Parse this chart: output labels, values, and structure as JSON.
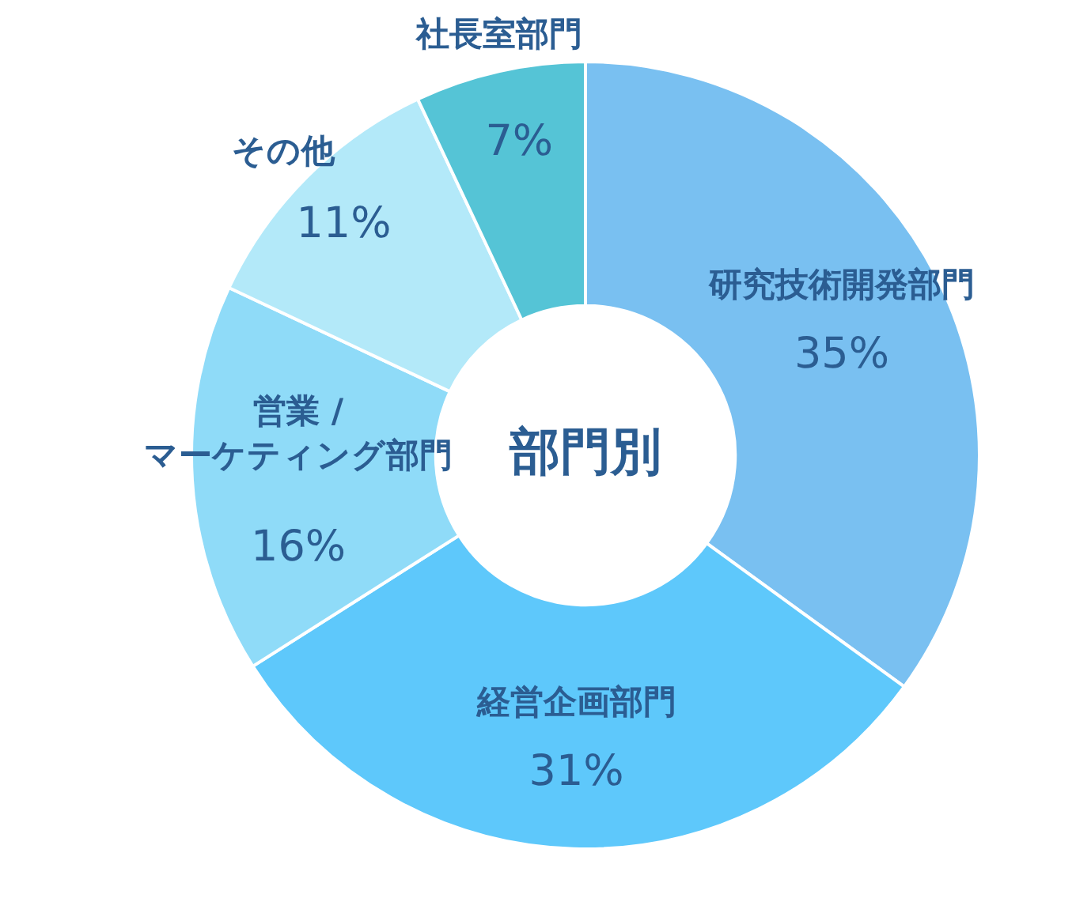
{
  "chart_data": {
    "type": "donut",
    "title": "部門別",
    "categories": [
      "研究技術開発部門",
      "経営企画部門",
      "営業 /\nマーケティング部門",
      "その他",
      "社長室部門"
    ],
    "values": [
      35,
      31,
      16,
      11,
      7
    ],
    "value_labels": [
      "35%",
      "31%",
      "16%",
      "11%",
      "7%"
    ],
    "colors": [
      "#79c0f1",
      "#5ec8fb",
      "#8fdbf8",
      "#b3e9f9",
      "#55c4d6"
    ],
    "legend": false
  }
}
